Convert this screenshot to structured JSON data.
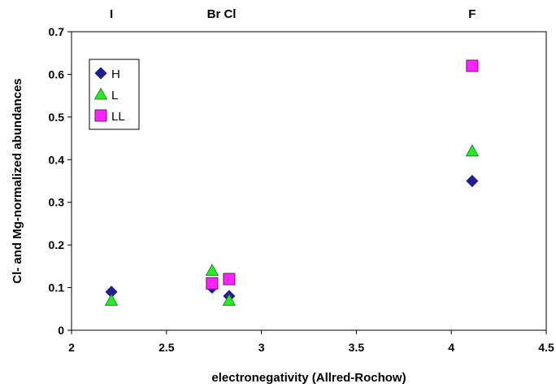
{
  "chart_data": {
    "type": "scatter",
    "xlabel": "electronegativity (Allred-Rochow)",
    "ylabel": "Cl- and Mg-normalized abundances",
    "xlim": [
      2,
      4.5
    ],
    "ylim": [
      0,
      0.7
    ],
    "xticks": [
      "2",
      "2.5",
      "3",
      "3.5",
      "4",
      "4.5"
    ],
    "yticks": [
      "0",
      "0.1",
      "0.2",
      "0.3",
      "0.4",
      "0.5",
      "0.6",
      "0.7"
    ],
    "top_labels": [
      {
        "text": "I",
        "x": 2.21
      },
      {
        "text": "Br Cl",
        "x": 2.79
      },
      {
        "text": "F",
        "x": 4.11
      }
    ],
    "grid": false,
    "legend_position": "top-left",
    "series": [
      {
        "name": "H",
        "marker": "diamond",
        "color": "#1f1f8f",
        "points": [
          {
            "x": 2.21,
            "y": 0.09
          },
          {
            "x": 2.74,
            "y": 0.1
          },
          {
            "x": 2.83,
            "y": 0.08
          },
          {
            "x": 4.11,
            "y": 0.35
          }
        ]
      },
      {
        "name": "L",
        "marker": "triangle",
        "color": "#22ee22",
        "points": [
          {
            "x": 2.21,
            "y": 0.07
          },
          {
            "x": 2.74,
            "y": 0.14
          },
          {
            "x": 2.83,
            "y": 0.07
          },
          {
            "x": 4.11,
            "y": 0.42
          }
        ]
      },
      {
        "name": "LL",
        "marker": "square",
        "color": "#ff22ff",
        "points": [
          {
            "x": 2.74,
            "y": 0.11
          },
          {
            "x": 2.83,
            "y": 0.12
          },
          {
            "x": 4.11,
            "y": 0.62
          }
        ]
      }
    ]
  }
}
